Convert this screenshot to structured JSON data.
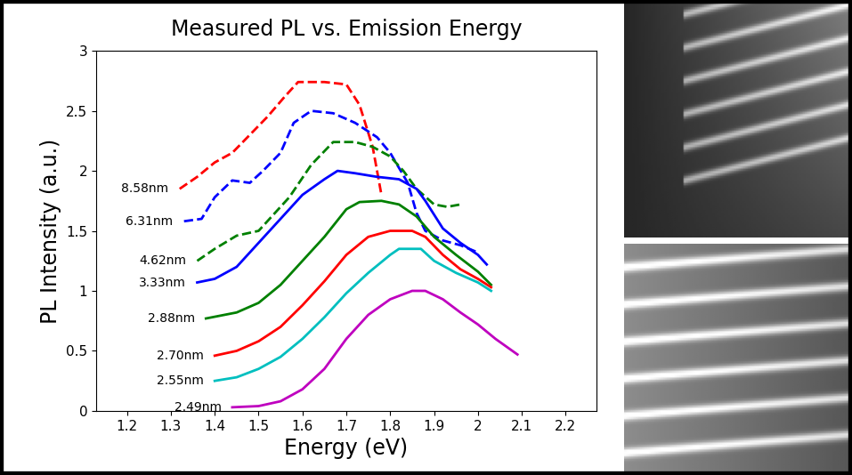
{
  "chart_data": {
    "type": "line",
    "title": "Measured PL vs. Emission Energy",
    "x_label": "Energy (eV)",
    "y_label": "PL Intensity (a.u.)",
    "xlim": [
      1.13,
      2.27
    ],
    "xticks": [
      1.2,
      1.3,
      1.4,
      1.5,
      1.6,
      1.7,
      1.8,
      1.9,
      2,
      2.1,
      2.2
    ],
    "ylim": [
      0,
      3
    ],
    "yticks": [
      0,
      0.5,
      1,
      1.5,
      2,
      2.5,
      3
    ],
    "grid": false,
    "series": [
      {
        "name": "8.58nm",
        "color": "#ff0000",
        "line_style": "dashed",
        "x": [
          1.32,
          1.36,
          1.4,
          1.44,
          1.48,
          1.52,
          1.56,
          1.59,
          1.65,
          1.7,
          1.73,
          1.76,
          1.78
        ],
        "values": [
          1.85,
          1.95,
          2.07,
          2.15,
          2.3,
          2.45,
          2.62,
          2.74,
          2.74,
          2.72,
          2.55,
          2.2,
          1.8
        ]
      },
      {
        "name": "6.31nm",
        "color": "#0000ff",
        "line_style": "dashed",
        "x": [
          1.33,
          1.37,
          1.4,
          1.44,
          1.48,
          1.51,
          1.55,
          1.58,
          1.62,
          1.67,
          1.72,
          1.77,
          1.8,
          1.84,
          1.86,
          1.88,
          1.92,
          1.96,
          2.0
        ],
        "values": [
          1.58,
          1.6,
          1.78,
          1.92,
          1.9,
          2.0,
          2.15,
          2.4,
          2.5,
          2.48,
          2.4,
          2.28,
          2.15,
          1.9,
          1.65,
          1.5,
          1.42,
          1.38,
          1.32
        ]
      },
      {
        "name": "4.62nm",
        "color": "#008000",
        "line_style": "dashed",
        "x": [
          1.36,
          1.4,
          1.45,
          1.5,
          1.53,
          1.57,
          1.62,
          1.67,
          1.72,
          1.76,
          1.8,
          1.83,
          1.86,
          1.9,
          1.93,
          1.96
        ],
        "values": [
          1.25,
          1.35,
          1.46,
          1.5,
          1.62,
          1.78,
          2.05,
          2.24,
          2.24,
          2.2,
          2.12,
          2.0,
          1.85,
          1.72,
          1.7,
          1.72
        ]
      },
      {
        "name": "3.33nm",
        "color": "#0000ff",
        "line_style": "solid",
        "x": [
          1.36,
          1.4,
          1.45,
          1.5,
          1.55,
          1.6,
          1.65,
          1.68,
          1.72,
          1.77,
          1.82,
          1.86,
          1.88,
          1.92,
          1.96,
          2.0,
          2.02
        ],
        "values": [
          1.07,
          1.1,
          1.2,
          1.4,
          1.6,
          1.8,
          1.93,
          2.0,
          1.98,
          1.95,
          1.93,
          1.85,
          1.75,
          1.52,
          1.4,
          1.3,
          1.22
        ]
      },
      {
        "name": "2.88nm",
        "color": "#008000",
        "line_style": "solid",
        "x": [
          1.38,
          1.45,
          1.5,
          1.55,
          1.6,
          1.65,
          1.7,
          1.73,
          1.78,
          1.82,
          1.86,
          1.9,
          1.95,
          2.0,
          2.03
        ],
        "values": [
          0.77,
          0.82,
          0.9,
          1.05,
          1.25,
          1.45,
          1.68,
          1.74,
          1.75,
          1.72,
          1.62,
          1.45,
          1.3,
          1.16,
          1.05
        ]
      },
      {
        "name": "2.70nm",
        "color": "#ff0000",
        "line_style": "solid",
        "x": [
          1.4,
          1.45,
          1.5,
          1.55,
          1.6,
          1.65,
          1.7,
          1.75,
          1.8,
          1.85,
          1.88,
          1.92,
          1.96,
          2.0,
          2.03
        ],
        "values": [
          0.46,
          0.5,
          0.58,
          0.7,
          0.88,
          1.08,
          1.3,
          1.45,
          1.5,
          1.5,
          1.45,
          1.3,
          1.18,
          1.1,
          1.03
        ]
      },
      {
        "name": "2.55nm",
        "color": "#00bfbf",
        "line_style": "solid",
        "x": [
          1.4,
          1.45,
          1.5,
          1.55,
          1.6,
          1.65,
          1.7,
          1.75,
          1.8,
          1.82,
          1.87,
          1.9,
          1.95,
          2.0,
          2.03
        ],
        "values": [
          0.25,
          0.28,
          0.35,
          0.45,
          0.6,
          0.78,
          0.98,
          1.15,
          1.3,
          1.35,
          1.35,
          1.25,
          1.15,
          1.07,
          1.0
        ]
      },
      {
        "name": "2.49nm",
        "color": "#bf00bf",
        "line_style": "solid",
        "x": [
          1.44,
          1.5,
          1.55,
          1.6,
          1.65,
          1.7,
          1.75,
          1.8,
          1.85,
          1.88,
          1.92,
          1.96,
          2.0,
          2.04,
          2.09
        ],
        "values": [
          0.03,
          0.04,
          0.08,
          0.18,
          0.35,
          0.6,
          0.8,
          0.93,
          1.0,
          1.0,
          0.93,
          0.82,
          0.72,
          0.6,
          0.47
        ]
      }
    ]
  }
}
